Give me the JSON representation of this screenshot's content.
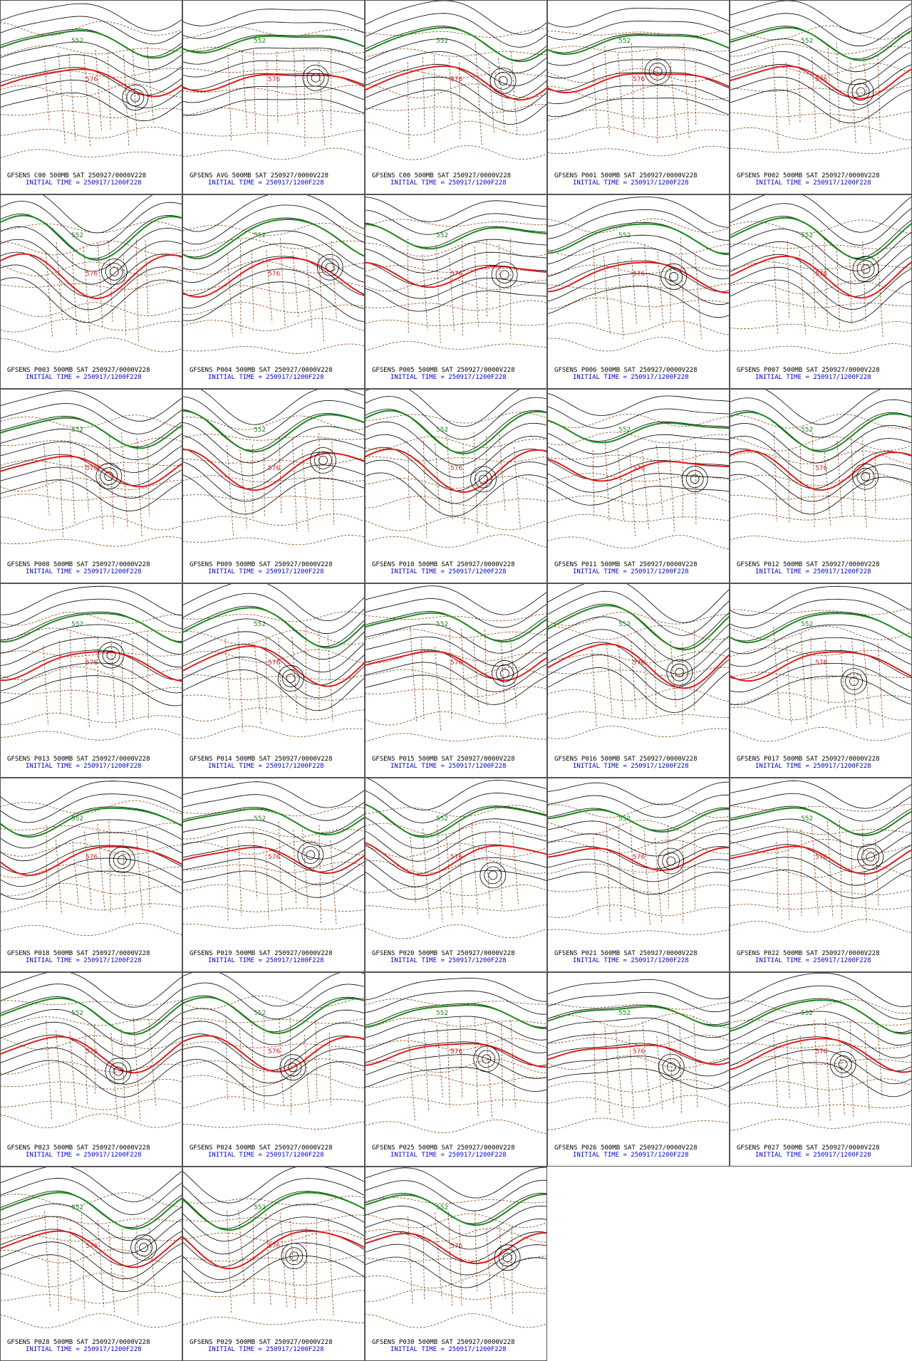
{
  "panels": [
    {
      "label": "GFSENS C00 500MB SAT 250927/0000V228",
      "init": "INITIAL TIME = 250917/1200F228"
    },
    {
      "label": "GFSENS AVG 500MB SAT 250927/0000V228",
      "init": "INITIAL TIME = 250917/1200F228"
    },
    {
      "label": "GFSENS C00 500MB SAT 250927/0000V228",
      "init": "INITIAL TIME = 250917/1200F228"
    },
    {
      "label": "GFSENS P001 500MB SAT 250927/0000V228",
      "init": "INITIAL TIME = 250917/1200F228"
    },
    {
      "label": "GFSENS P002 500MB SAT 250927/0000V228",
      "init": "INITIAL TIME = 250917/1200F228"
    },
    {
      "label": "GFSENS P003 500MB SAT 250927/0000V228",
      "init": "INITIAL TIME = 250917/1200F228"
    },
    {
      "label": "GFSENS P004 500MB SAT 250927/0000V228",
      "init": "INITIAL TIME = 250917/1200F228"
    },
    {
      "label": "GFSENS P005 500MB SAT 250927/0000V228",
      "init": "INITIAL TIME = 250917/1200F228"
    },
    {
      "label": "GFSENS P006 500MB SAT 250927/0000V228",
      "init": "INITIAL TIME = 250917/1200F228"
    },
    {
      "label": "GFSENS P007 500MB SAT 250927/0000V228",
      "init": "INITIAL TIME = 250917/1200F228"
    },
    {
      "label": "GFSENS P008 500MB SAT 250927/0000V228",
      "init": "INITIAL TIME = 250917/1200F228"
    },
    {
      "label": "GFSENS P009 500MB SAT 250927/0000V228",
      "init": "INITIAL TIME = 250917/1200F228"
    },
    {
      "label": "GFSENS P010 500MB SAT 250927/0000V228",
      "init": "INITIAL TIME = 250917/1200F228"
    },
    {
      "label": "GFSENS P011 500MB SAT 250927/0000V228",
      "init": "INITIAL TIME = 250917/1200F228"
    },
    {
      "label": "GFSENS P012 500MB SAT 250927/0000V228",
      "init": "INITIAL TIME = 250917/1200F228"
    },
    {
      "label": "GFSENS P013 500MB SAT 250927/0000V228",
      "init": "INITIAL TIME = 250917/1200F228"
    },
    {
      "label": "GFSENS P014 500MB SAT 250927/0000V228",
      "init": "INITIAL TIME = 250917/1200F228"
    },
    {
      "label": "GFSENS P015 500MB SAT 250927/0000V228",
      "init": "INITIAL TIME = 250917/1200F228"
    },
    {
      "label": "GFSENS P016 500MB SAT 250927/0000V228",
      "init": "INITIAL TIME = 250917/1200F228"
    },
    {
      "label": "GFSENS P017 500MB SAT 250927/0000V228",
      "init": "INITIAL TIME = 250917/1200F228"
    },
    {
      "label": "GFSENS P018 500MB SAT 250927/0000V228",
      "init": "INITIAL TIME = 250917/1200F228"
    },
    {
      "label": "GFSENS P019 500MB SAT 250927/0000V228",
      "init": "INITIAL TIME = 250917/1200F228"
    },
    {
      "label": "GFSENS P020 500MB SAT 250927/0000V228",
      "init": "INITIAL TIME = 250917/1200F228"
    },
    {
      "label": "GFSENS P021 500MB SAT 250927/0000V228",
      "init": "INITIAL TIME = 250917/1200F228"
    },
    {
      "label": "GFSENS P022 500MB SAT 250927/0000V228",
      "init": "INITIAL TIME = 250917/1200F228"
    },
    {
      "label": "GFSENS P023 500MB SAT 250927/0000V228",
      "init": "INITIAL TIME = 250917/1200F228"
    },
    {
      "label": "GFSENS P024 500MB SAT 250927/0000V228",
      "init": "INITIAL TIME = 250917/1200F228"
    },
    {
      "label": "GFSENS P025 500MB SAT 250927/0000V228",
      "init": "INITIAL TIME = 250917/1200F228"
    },
    {
      "label": "GFSENS P026 500MB SAT 250927/0000V228",
      "init": "INITIAL TIME = 250917/1200F228"
    },
    {
      "label": "GFSENS P027 500MB SAT 250927/0000V228",
      "init": "INITIAL TIME = 250917/1200F228"
    },
    {
      "label": "GFSENS P028 500MB SAT 250927/0000V228",
      "init": "INITIAL TIME = 250917/1200F228"
    },
    {
      "label": "GFSENS P029 500MB SAT 250927/0000V228",
      "init": "INITIAL TIME = 250917/1200F228"
    },
    {
      "label": "GFSENS P030 500MB SAT 250927/0000V228",
      "init": "INITIAL TIME = 250917/1200F228"
    }
  ],
  "contour_labels": {
    "green": "552",
    "red": "576"
  }
}
